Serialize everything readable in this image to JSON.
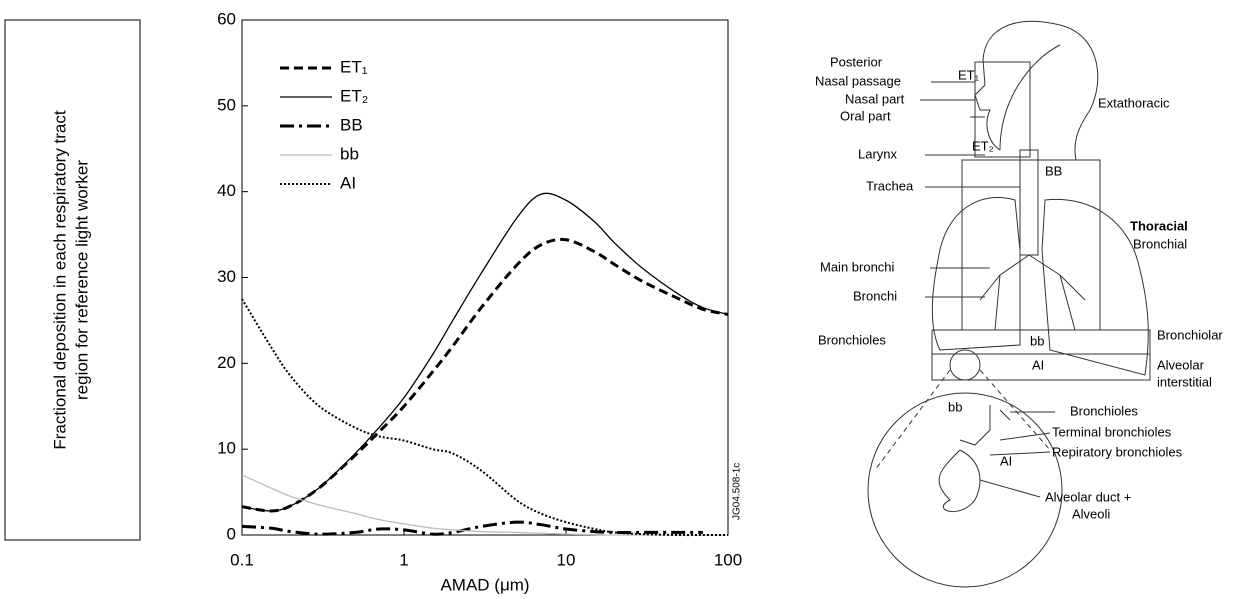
{
  "chart_data": {
    "type": "line",
    "ylabel_lines": [
      "Fractional deposition in each respiratory tract",
      "region for reference light worker"
    ],
    "xlabel": "AMAD (μm)",
    "annotation": "JG04.508-1c",
    "x": [
      0.1,
      0.15,
      0.2,
      0.3,
      0.5,
      0.7,
      1,
      1.5,
      2,
      3,
      5,
      7,
      10,
      15,
      20,
      30,
      50,
      70,
      100
    ],
    "xscale": "log",
    "xlim": [
      0.1,
      100
    ],
    "xticks": [
      0.1,
      1,
      10,
      100
    ],
    "ylim": [
      0,
      60
    ],
    "yticks": [
      0,
      10,
      20,
      30,
      40,
      50,
      60
    ],
    "legend": "upper left",
    "series": [
      {
        "name": "ET₁",
        "color": "#000000",
        "style": "dashed",
        "width": 3,
        "values": [
          3.3,
          2.8,
          3.4,
          5.5,
          9.3,
          12,
          15,
          19,
          22,
          26.5,
          31.5,
          33.8,
          34.4,
          33,
          31.5,
          29.5,
          27.5,
          26.3,
          25.7
        ]
      },
      {
        "name": "ET₂",
        "color": "#000000",
        "style": "solid",
        "width": 1.3,
        "values": [
          3.3,
          2.8,
          3.4,
          5.5,
          9.5,
          12.5,
          16,
          21,
          25,
          30.5,
          37,
          39.7,
          39,
          36.5,
          34,
          31,
          28,
          26.5,
          25.7
        ]
      },
      {
        "name": "BB",
        "color": "#000000",
        "style": "dashdot",
        "width": 3,
        "values": [
          1,
          0.8,
          0.4,
          0.1,
          0.3,
          0.7,
          0.6,
          0.1,
          0.3,
          1,
          1.5,
          1.2,
          0.7,
          0.4,
          0.3,
          0.3,
          0.3,
          0.3,
          null
        ]
      },
      {
        "name": "bb",
        "color": "#bbbbbb",
        "style": "solid",
        "width": 1.3,
        "values": [
          7,
          5.5,
          4.5,
          3.5,
          2.5,
          1.8,
          1.3,
          0.8,
          0.6,
          0.4,
          0.3,
          0.2,
          0.1,
          0.05,
          0,
          0,
          0,
          0,
          0
        ]
      },
      {
        "name": "AI",
        "color": "#000000",
        "style": "dotted",
        "width": 2,
        "values": [
          27.5,
          22,
          18.5,
          15,
          12.5,
          11.5,
          11,
          10,
          9.5,
          7.5,
          4,
          2.5,
          1.5,
          0.7,
          0.3,
          0.1,
          0,
          0,
          0
        ]
      }
    ]
  },
  "diagram": {
    "labels": [
      "Posterior",
      "Nasal passage",
      "Nasal part",
      "Oral part",
      "Larynx",
      "Trachea",
      "Main bronchi",
      "Bronchi",
      "Bronchioles",
      "Extathoracic",
      "Thoracial",
      "Bronchial",
      "Bronchiolar",
      "Alveolar",
      "interstitial",
      "Bronchioles",
      "Terminal bronchioles",
      "Repiratory bronchioles",
      "Alveolar duct +",
      "Alveoli"
    ],
    "regions": [
      "ET₁",
      "ET₂",
      "BB",
      "bb",
      "AI",
      "bb",
      "AI"
    ]
  }
}
